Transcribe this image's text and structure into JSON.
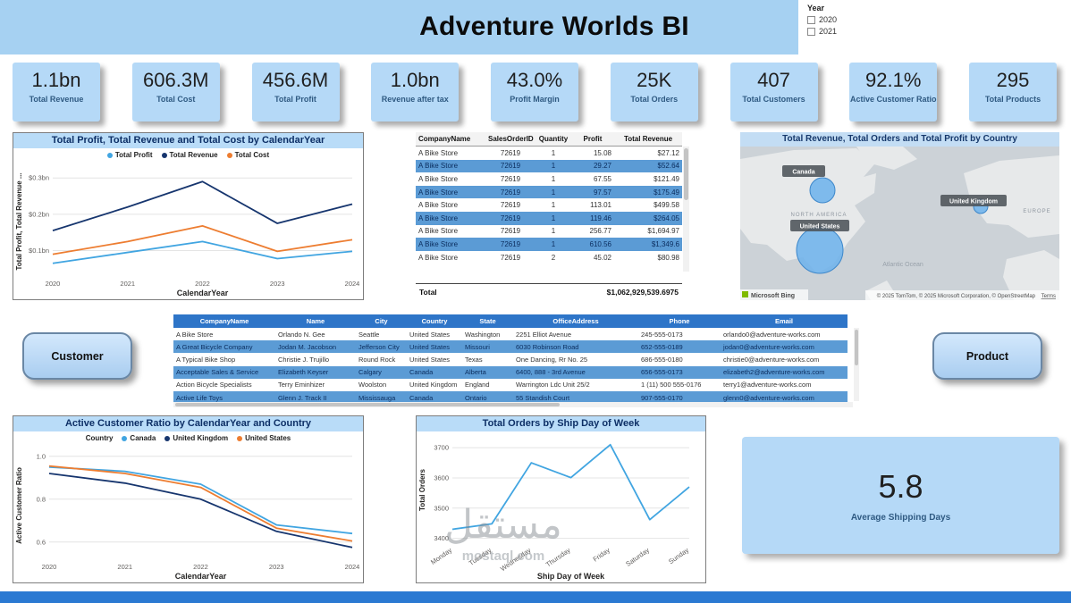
{
  "header": {
    "title": "Adventure Worlds BI",
    "year_label": "Year",
    "year_options": [
      "2020",
      "2021"
    ],
    "more_options": "···"
  },
  "kpis": [
    {
      "value": "1.1bn",
      "label": "Total Revenue"
    },
    {
      "value": "606.3M",
      "label": "Total Cost"
    },
    {
      "value": "456.6M",
      "label": "Total Profit"
    },
    {
      "value": "1.0bn",
      "label": "Revenue after tax"
    },
    {
      "value": "43.0%",
      "label": "Profit Margin"
    },
    {
      "value": "25K",
      "label": "Total Orders"
    },
    {
      "value": "407",
      "label": "Total Customers"
    },
    {
      "value": "92.1%",
      "label": "Active Customer Ratio"
    },
    {
      "value": "295",
      "label": "Total Products"
    }
  ],
  "order_table": {
    "columns": [
      "CompanyName",
      "SalesOrderID",
      "Quantity",
      "Profit",
      "Total Revenue"
    ],
    "rows": [
      [
        "A Bike Store",
        "72619",
        "1",
        "15.08",
        "$27.12"
      ],
      [
        "A Bike Store",
        "72619",
        "1",
        "29.27",
        "$52.64"
      ],
      [
        "A Bike Store",
        "72619",
        "1",
        "67.55",
        "$121.49"
      ],
      [
        "A Bike Store",
        "72619",
        "1",
        "97.57",
        "$175.49"
      ],
      [
        "A Bike Store",
        "72619",
        "1",
        "113.01",
        "$499.58"
      ],
      [
        "A Bike Store",
        "72619",
        "1",
        "119.46",
        "$264.05"
      ],
      [
        "A Bike Store",
        "72619",
        "1",
        "256.77",
        "$1,694.97"
      ],
      [
        "A Bike Store",
        "72619",
        "1",
        "610.56",
        "$1,349.6"
      ],
      [
        "A Bike Store",
        "72619",
        "2",
        "45.02",
        "$80.98"
      ]
    ],
    "total_label": "Total",
    "total_value": "$1,062,929,539.6975"
  },
  "customer_table": {
    "columns": [
      "CompanyName",
      "Name",
      "City",
      "Country",
      "State",
      "OfficeAddress",
      "Phone",
      "Email"
    ],
    "rows": [
      [
        "A Bike Store",
        "Orlando N. Gee",
        "Seattle",
        "United States",
        "Washington",
        "2251 Elliot Avenue",
        "245-555-0173",
        "orlando0@adventure-works.com"
      ],
      [
        "A Great Bicycle Company",
        "Jodan M. Jacobson",
        "Jefferson City",
        "United States",
        "Missouri",
        "6030 Robinson Road",
        "652-555-0189",
        "jodan0@adventure-works.com"
      ],
      [
        "A Typical Bike Shop",
        "Christie J. Trujillo",
        "Round Rock",
        "United States",
        "Texas",
        "One Dancing, Rr No. 25",
        "686-555-0180",
        "christie0@adventure-works.com"
      ],
      [
        "Acceptable Sales & Service",
        "Elizabeth Keyser",
        "Calgary",
        "Canada",
        "Alberta",
        "6400, 888 - 3rd Avenue",
        "656-555-0173",
        "elizabeth2@adventure-works.com"
      ],
      [
        "Action Bicycle Specialists",
        "Terry Eminhizer",
        "Woolston",
        "United Kingdom",
        "England",
        "Warrington Ldc Unit 25/2",
        "1 (11) 500 555-0176",
        "terry1@adventure-works.com"
      ],
      [
        "Active Life Toys",
        "Glenn J. Track II",
        "Mississauga",
        "Canada",
        "Ontario",
        "55 Standish Court",
        "907-555-0170",
        "glenn0@adventure-works.com"
      ]
    ]
  },
  "buttons": {
    "customer": "Customer",
    "product": "Product"
  },
  "map": {
    "title": "Total Revenue, Total Orders and Total Profit by Country",
    "labels": {
      "canada": "Canada",
      "united_states": "United States",
      "united_kingdom": "United Kingdom"
    },
    "region_north_america": "NORTH AMERICA",
    "region_europe": "EUROPE",
    "ocean": "Atlantic Ocean",
    "logo": "Microsoft Bing",
    "attribution": "© 2025 TomTom, © 2025 Microsoft Corporation, © OpenStreetMap",
    "terms": "Terms"
  },
  "avg_shipping": {
    "value": "5.8",
    "label": "Average Shipping Days"
  },
  "watermark": {
    "line1": "مستقل",
    "line2": "mostaql.com"
  },
  "chart_data": [
    {
      "type": "line",
      "title": "Total Profit, Total Revenue and Total Cost by CalendarYear",
      "xlabel": "CalendarYear",
      "ylabel": "Total Profit, Total Revenue ...",
      "legend_title": "",
      "legend_position": "top",
      "grid": true,
      "categories": [
        "2020",
        "2021",
        "2022",
        "2023",
        "2024"
      ],
      "series": [
        {
          "name": "Total Profit",
          "color": "#41A5E1",
          "values": [
            0.065,
            0.095,
            0.125,
            0.078,
            0.098
          ]
        },
        {
          "name": "Total Revenue",
          "color": "#16356E",
          "values": [
            0.155,
            0.22,
            0.29,
            0.175,
            0.228
          ]
        },
        {
          "name": "Total Cost",
          "color": "#ED7D31",
          "values": [
            0.09,
            0.125,
            0.168,
            0.098,
            0.13
          ]
        }
      ],
      "ylim": [
        0.03,
        0.33
      ],
      "yticks": [
        {
          "v": 0.1,
          "label": "$0.1bn"
        },
        {
          "v": 0.2,
          "label": "$0.2bn"
        },
        {
          "v": 0.3,
          "label": "$0.3bn"
        }
      ]
    },
    {
      "type": "line",
      "title": "Active Customer Ratio by CalendarYear and Country",
      "xlabel": "CalendarYear",
      "ylabel": "Active Customer Ratio",
      "legend_title": "Country",
      "legend_position": "top",
      "grid": true,
      "categories": [
        "2020",
        "2021",
        "2022",
        "2023",
        "2024"
      ],
      "series": [
        {
          "name": "Canada",
          "color": "#41A5E1",
          "values": [
            0.95,
            0.93,
            0.87,
            0.68,
            0.64
          ]
        },
        {
          "name": "United Kingdom",
          "color": "#16356E",
          "values": [
            0.92,
            0.875,
            0.8,
            0.65,
            0.575
          ]
        },
        {
          "name": "United States",
          "color": "#ED7D31",
          "values": [
            0.955,
            0.92,
            0.855,
            0.665,
            0.605
          ]
        }
      ],
      "ylim": [
        0.52,
        1.02
      ],
      "yticks": [
        {
          "v": 0.6,
          "label": "0.6"
        },
        {
          "v": 0.8,
          "label": "0.8"
        },
        {
          "v": 1.0,
          "label": "1.0"
        }
      ]
    },
    {
      "type": "line",
      "title": "Total Orders by Ship Day of Week",
      "xlabel": "Ship Day of Week",
      "ylabel": "Total Orders",
      "legend_title": "",
      "legend_position": "none",
      "grid": true,
      "categories": [
        "Monday",
        "Tuesday",
        "Wednesday",
        "Thursday",
        "Friday",
        "Saturday",
        "Sunday"
      ],
      "series": [
        {
          "name": "Total Orders",
          "color": "#41A5E1",
          "values": [
            3430,
            3448,
            3650,
            3601,
            3710,
            3462,
            3570
          ]
        }
      ],
      "ylim": [
        3390,
        3730
      ],
      "yticks": [
        {
          "v": 3400,
          "label": "3400"
        },
        {
          "v": 3500,
          "label": "3500"
        },
        {
          "v": 3600,
          "label": "3600"
        },
        {
          "v": 3700,
          "label": "3700"
        }
      ]
    }
  ]
}
